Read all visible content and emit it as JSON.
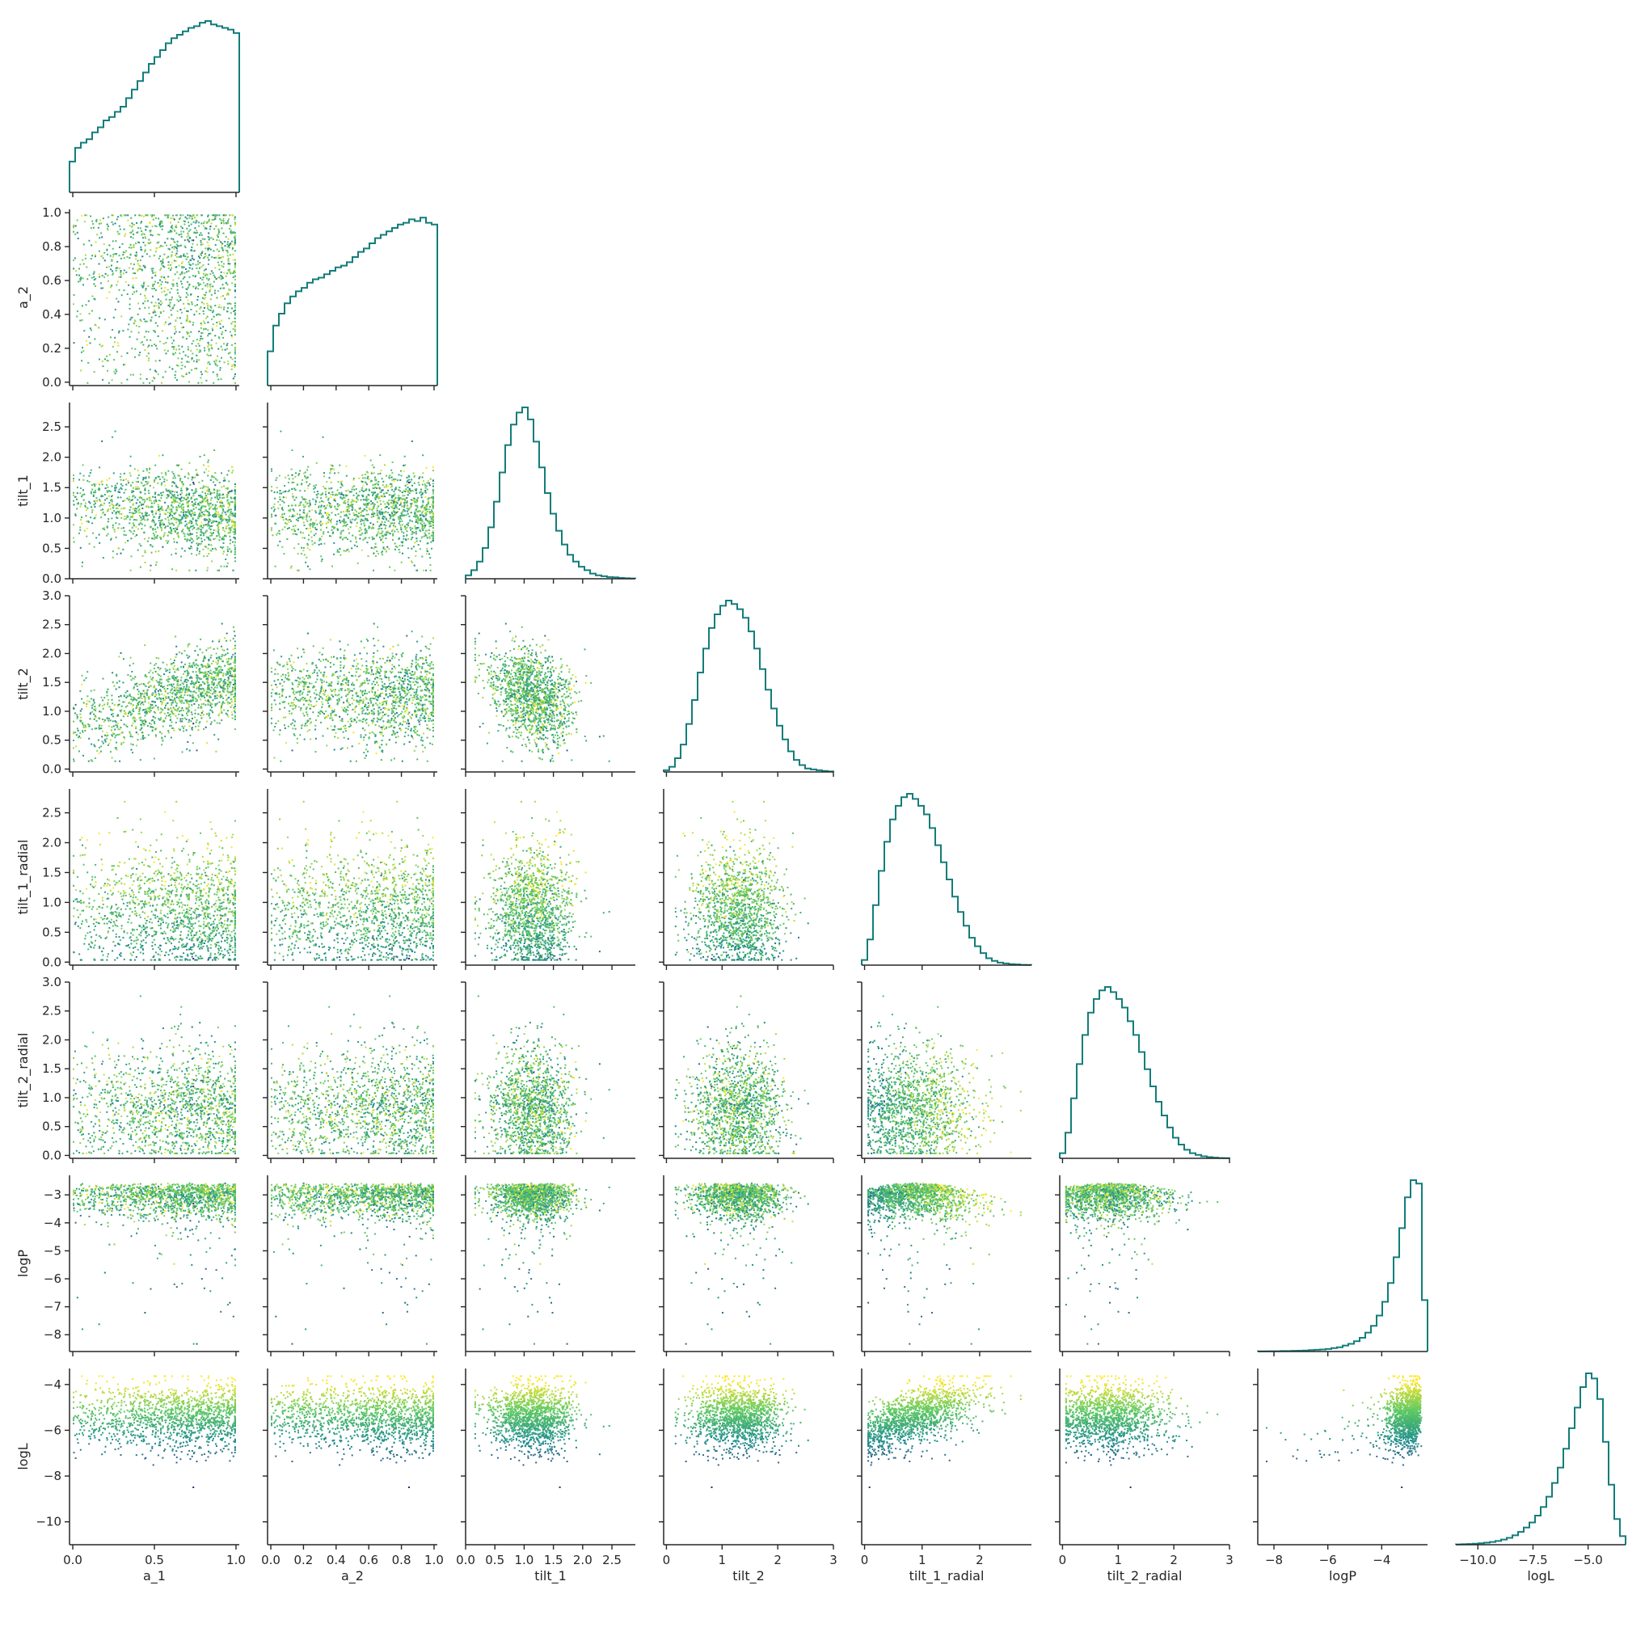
{
  "chart_data": {
    "type": "scatter",
    "title": "",
    "layout": "corner",
    "grid": false,
    "legend": "none",
    "diagonal": "step-histogram",
    "hist_color": "#127d7a",
    "colormap": [
      "#440154",
      "#3b528b",
      "#21918c",
      "#5ec962",
      "#fde725"
    ],
    "variables": [
      {
        "name": "a_1",
        "label": "a_1",
        "range": [
          -0.02,
          1.02
        ],
        "ticks": [
          "0.0",
          "0.5",
          "1.0"
        ],
        "tick_values": [
          0,
          0.5,
          1.0
        ],
        "hist": [
          0.18,
          0.26,
          0.29,
          0.31,
          0.35,
          0.38,
          0.42,
          0.44,
          0.47,
          0.5,
          0.55,
          0.6,
          0.65,
          0.7,
          0.75,
          0.79,
          0.83,
          0.87,
          0.9,
          0.92,
          0.94,
          0.96,
          0.97,
          0.99,
          1.0,
          0.98,
          0.97,
          0.96,
          0.95,
          0.93
        ]
      },
      {
        "name": "a_2",
        "label": "a_2",
        "range": [
          -0.02,
          1.02
        ],
        "ticks": [
          "0.0",
          "0.2",
          "0.4",
          "0.6",
          "0.8",
          "1.0"
        ],
        "tick_values": [
          0,
          0.2,
          0.4,
          0.6,
          0.8,
          1.0
        ],
        "hist": [
          0.2,
          0.35,
          0.42,
          0.48,
          0.52,
          0.55,
          0.57,
          0.6,
          0.62,
          0.63,
          0.65,
          0.67,
          0.69,
          0.7,
          0.72,
          0.75,
          0.78,
          0.8,
          0.83,
          0.86,
          0.88,
          0.9,
          0.92,
          0.94,
          0.95,
          0.97,
          0.96,
          0.98,
          0.95,
          0.94
        ]
      },
      {
        "name": "tilt_1",
        "label": "tilt_1",
        "range": [
          0,
          2.9
        ],
        "ticks": [
          "0.0",
          "0.5",
          "1.0",
          "1.5",
          "2.0",
          "2.5"
        ],
        "tick_values": [
          0,
          0.5,
          1.0,
          1.5,
          2.0,
          2.5
        ],
        "hist": [
          0.02,
          0.05,
          0.1,
          0.18,
          0.3,
          0.45,
          0.62,
          0.78,
          0.9,
          0.97,
          1.0,
          0.93,
          0.8,
          0.65,
          0.5,
          0.38,
          0.28,
          0.2,
          0.14,
          0.1,
          0.07,
          0.05,
          0.03,
          0.02,
          0.015,
          0.01,
          0.008,
          0.005,
          0.003,
          0.002
        ]
      },
      {
        "name": "tilt_2",
        "label": "tilt_2",
        "range": [
          -0.05,
          3.0
        ],
        "ticks": [
          "0.0",
          "0.5",
          "1.0",
          "1.5",
          "2.0",
          "2.5",
          "3.0"
        ],
        "tick_values": [
          0,
          0.5,
          1.0,
          1.5,
          2.0,
          2.5,
          3.0
        ],
        "tick_labels_x": [
          "0",
          "1",
          "2",
          "3"
        ],
        "tick_values_x": [
          0,
          1,
          2,
          3
        ],
        "hist": [
          0.01,
          0.03,
          0.08,
          0.16,
          0.28,
          0.42,
          0.58,
          0.72,
          0.84,
          0.92,
          0.97,
          1.0,
          0.98,
          0.95,
          0.9,
          0.82,
          0.72,
          0.6,
          0.48,
          0.37,
          0.27,
          0.19,
          0.12,
          0.07,
          0.04,
          0.02,
          0.015,
          0.01,
          0.006,
          0.003
        ]
      },
      {
        "name": "tilt_1_radial",
        "label": "tilt_1_radial",
        "range": [
          -0.05,
          2.9
        ],
        "ticks": [
          "0.0",
          "0.5",
          "1.0",
          "1.5",
          "2.0",
          "2.5"
        ],
        "tick_values": [
          0,
          0.5,
          1.0,
          1.5,
          2.0,
          2.5
        ],
        "tick_labels_x": [
          "0",
          "1",
          "2"
        ],
        "tick_values_x": [
          0,
          1,
          2
        ],
        "hist": [
          0.03,
          0.15,
          0.35,
          0.55,
          0.72,
          0.85,
          0.93,
          0.98,
          1.0,
          0.97,
          0.93,
          0.88,
          0.8,
          0.7,
          0.6,
          0.5,
          0.4,
          0.31,
          0.23,
          0.16,
          0.11,
          0.07,
          0.04,
          0.025,
          0.015,
          0.01,
          0.006,
          0.004,
          0.002,
          0.001
        ]
      },
      {
        "name": "tilt_2_radial",
        "label": "tilt_2_radial",
        "range": [
          -0.05,
          3.0
        ],
        "ticks": [
          "0.0",
          "0.5",
          "1.0",
          "1.5",
          "2.0",
          "2.5",
          "3.0"
        ],
        "tick_values": [
          0,
          0.5,
          1.0,
          1.5,
          2.0,
          2.5,
          3.0
        ],
        "tick_labels_x": [
          "0",
          "1",
          "2",
          "3"
        ],
        "tick_values_x": [
          0,
          1,
          2,
          3
        ],
        "hist": [
          0.03,
          0.15,
          0.35,
          0.55,
          0.72,
          0.85,
          0.93,
          0.98,
          1.0,
          0.97,
          0.93,
          0.88,
          0.8,
          0.72,
          0.62,
          0.52,
          0.42,
          0.33,
          0.25,
          0.18,
          0.12,
          0.08,
          0.05,
          0.03,
          0.02,
          0.012,
          0.007,
          0.004,
          0.002,
          0.001
        ]
      },
      {
        "name": "logP",
        "label": "logP",
        "range": [
          -8.6,
          -2.3
        ],
        "ticks": [
          "−8",
          "−7",
          "−6",
          "−5",
          "−4",
          "−3"
        ],
        "tick_values": [
          -8,
          -7,
          -6,
          -5,
          -4,
          -3
        ],
        "tick_labels_x": [
          "−8",
          "−6",
          "−4"
        ],
        "tick_values_x": [
          -8,
          -6,
          -4
        ],
        "hist": [
          0.001,
          0.001,
          0.002,
          0.002,
          0.003,
          0.003,
          0.004,
          0.005,
          0.006,
          0.008,
          0.01,
          0.012,
          0.015,
          0.02,
          0.025,
          0.035,
          0.045,
          0.06,
          0.08,
          0.11,
          0.15,
          0.21,
          0.29,
          0.4,
          0.55,
          0.72,
          0.9,
          1.0,
          0.98,
          0.3
        ]
      },
      {
        "name": "logL",
        "label": "logL",
        "range": [
          -11.0,
          -3.3
        ],
        "ticks": [
          "−10",
          "−8",
          "−6",
          "−4"
        ],
        "tick_values": [
          -10,
          -8,
          -6,
          -4
        ],
        "tick_labels_x": [
          "−10.0",
          "−7.5",
          "−5.0"
        ],
        "tick_values_x": [
          -10,
          -7.5,
          -5
        ],
        "hist": [
          0.002,
          0.003,
          0.004,
          0.006,
          0.008,
          0.012,
          0.016,
          0.022,
          0.03,
          0.04,
          0.055,
          0.075,
          0.1,
          0.13,
          0.17,
          0.22,
          0.28,
          0.36,
          0.45,
          0.56,
          0.68,
          0.8,
          0.92,
          1.0,
          0.97,
          0.85,
          0.6,
          0.35,
          0.15,
          0.05
        ]
      }
    ]
  }
}
